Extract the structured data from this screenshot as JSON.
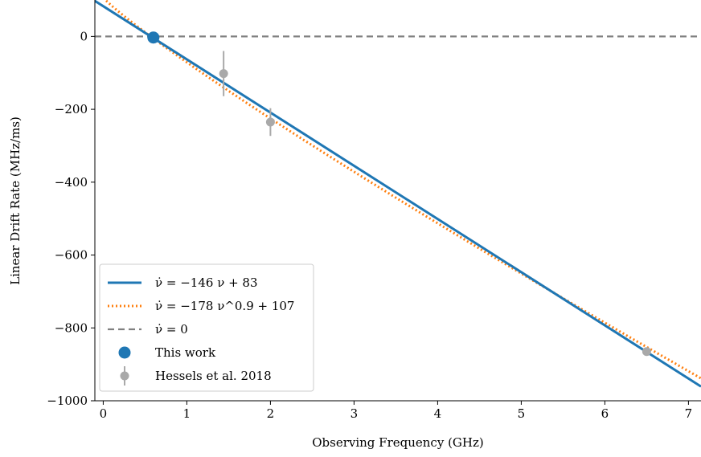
{
  "chart_data": {
    "type": "line",
    "xlabel": "Observing Frequency (GHz)",
    "ylabel": "Linear Drift Rate (MHz/ms)",
    "xlim": [
      -0.1,
      7.15
    ],
    "ylim": [
      -1000,
      100
    ],
    "xticks": [
      "0",
      "1",
      "2",
      "3",
      "4",
      "5",
      "6",
      "7"
    ],
    "yticks": [
      "0",
      "−200",
      "−400",
      "−600",
      "−800",
      "−1000"
    ],
    "grid": false,
    "legend_position": "lower-left",
    "series": [
      {
        "name": "ν̇ = −146 ν + 83",
        "kind": "line",
        "style": "solid",
        "color": "#1f77b4",
        "formula": {
          "slope": -146,
          "intercept": 83
        }
      },
      {
        "name": "ν̇ = −178 ν^0.9 + 107",
        "kind": "line",
        "style": "dotted",
        "color": "#ff7f0e",
        "formula": {
          "coef": -178,
          "power": 0.9,
          "intercept": 107
        }
      },
      {
        "name": "ν̇ = 0",
        "kind": "line",
        "style": "dashed",
        "color": "#808080",
        "y": 0
      },
      {
        "name": "This work",
        "kind": "errorbar",
        "color": "#1f77b4",
        "points": [
          {
            "x": 0.6,
            "y": -3,
            "yerr": 4
          }
        ]
      },
      {
        "name": "Hessels et al. 2018",
        "kind": "errorbar",
        "color": "#a9a9a9",
        "points": [
          {
            "x": 1.44,
            "y": -102,
            "yerr": 62
          },
          {
            "x": 2.0,
            "y": -235,
            "yerr": 38
          },
          {
            "x": 6.5,
            "y": -865,
            "yerr": 5
          }
        ]
      }
    ]
  }
}
